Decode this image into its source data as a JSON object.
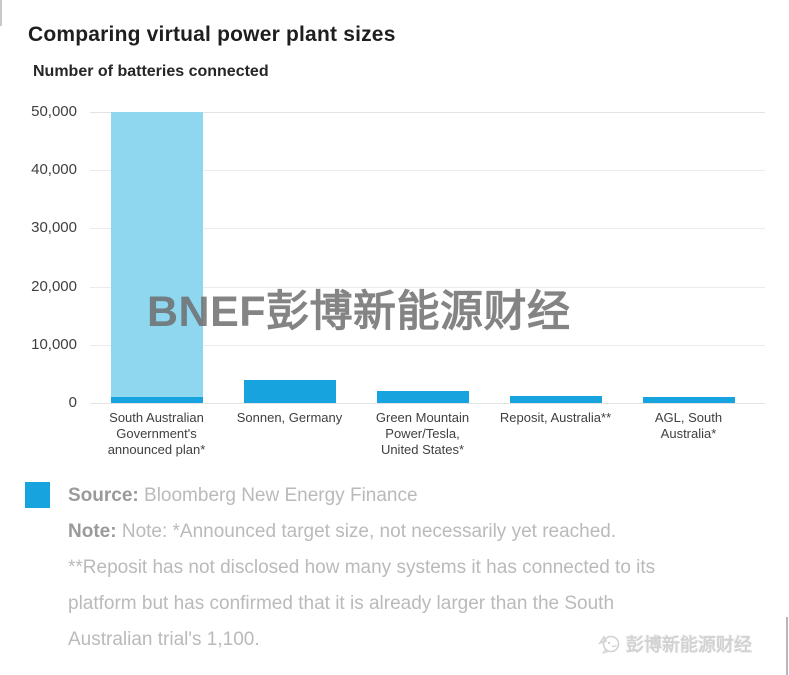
{
  "page": {
    "title": "Comparing virtual power plant sizes",
    "subtitle": "Number of batteries connected"
  },
  "chart_data": {
    "type": "bar",
    "title": "Comparing virtual power plant sizes",
    "axis_caption": "Number of batteries connected",
    "categories": [
      "South Australian\nGovernment's\nannounced plan*",
      "Sonnen, Germany",
      "Green Mountain\nPower/Tesla,\nUnited States*",
      "Reposit, Australia**",
      "AGL, South\nAustralia*"
    ],
    "values": [
      50000,
      4000,
      2000,
      1200,
      1000
    ],
    "overlay_segment": {
      "category_index": 0,
      "value": 1100,
      "label": "South Australian trial's current 1,100"
    },
    "ylim": [
      0,
      50000
    ],
    "yticks": [
      {
        "value": 0,
        "label": "0"
      },
      {
        "value": 10000,
        "label": "10,000"
      },
      {
        "value": 20000,
        "label": "20,000"
      },
      {
        "value": 30000,
        "label": "30,000"
      },
      {
        "value": 40000,
        "label": "40,000"
      },
      {
        "value": 50000,
        "label": "50,000"
      }
    ],
    "grid": true,
    "legend_position": "none",
    "colors": {
      "announced_plan_bar": "#8fd7ef",
      "default_bar": "#17a3de"
    }
  },
  "watermarks": {
    "center": "BNEF彭博新能源财经",
    "bottom_right": "彭博新能源财经"
  },
  "footer": {
    "legend_color": "#17a3de",
    "source_label": "Source:",
    "source_text": "Bloomberg New Energy Finance",
    "note_label": "Note:",
    "note_lines": [
      "Note: *Announced target size, not necessarily yet reached.",
      "**Reposit has not disclosed how many systems it has connected to its",
      "platform but has confirmed that it is already larger than the South",
      "Australian trial's 1,100."
    ]
  }
}
